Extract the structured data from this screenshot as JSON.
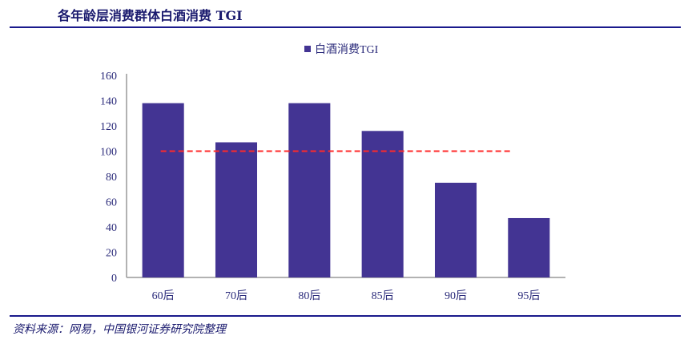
{
  "header": {
    "title": "各年龄层消费群体白酒消费 TGI"
  },
  "footer": {
    "source": "资料来源：网易，中国银河证券研究院整理"
  },
  "chart_data": {
    "type": "bar",
    "title": "",
    "categories": [
      "60后",
      "70后",
      "80后",
      "85后",
      "90后",
      "95后"
    ],
    "series": [
      {
        "name": "白酒消费TGI",
        "values": [
          138,
          107,
          138,
          116,
          75,
          47
        ],
        "color": "#433493"
      }
    ],
    "reference_line": {
      "value": 100,
      "color": "#ff2a2a",
      "style": "dashed"
    },
    "ylim": [
      0,
      160
    ],
    "yticks": [
      0,
      20,
      40,
      60,
      80,
      100,
      120,
      140,
      160
    ],
    "grid": false,
    "legend": "top-center",
    "xlabel": "",
    "ylabel": ""
  }
}
